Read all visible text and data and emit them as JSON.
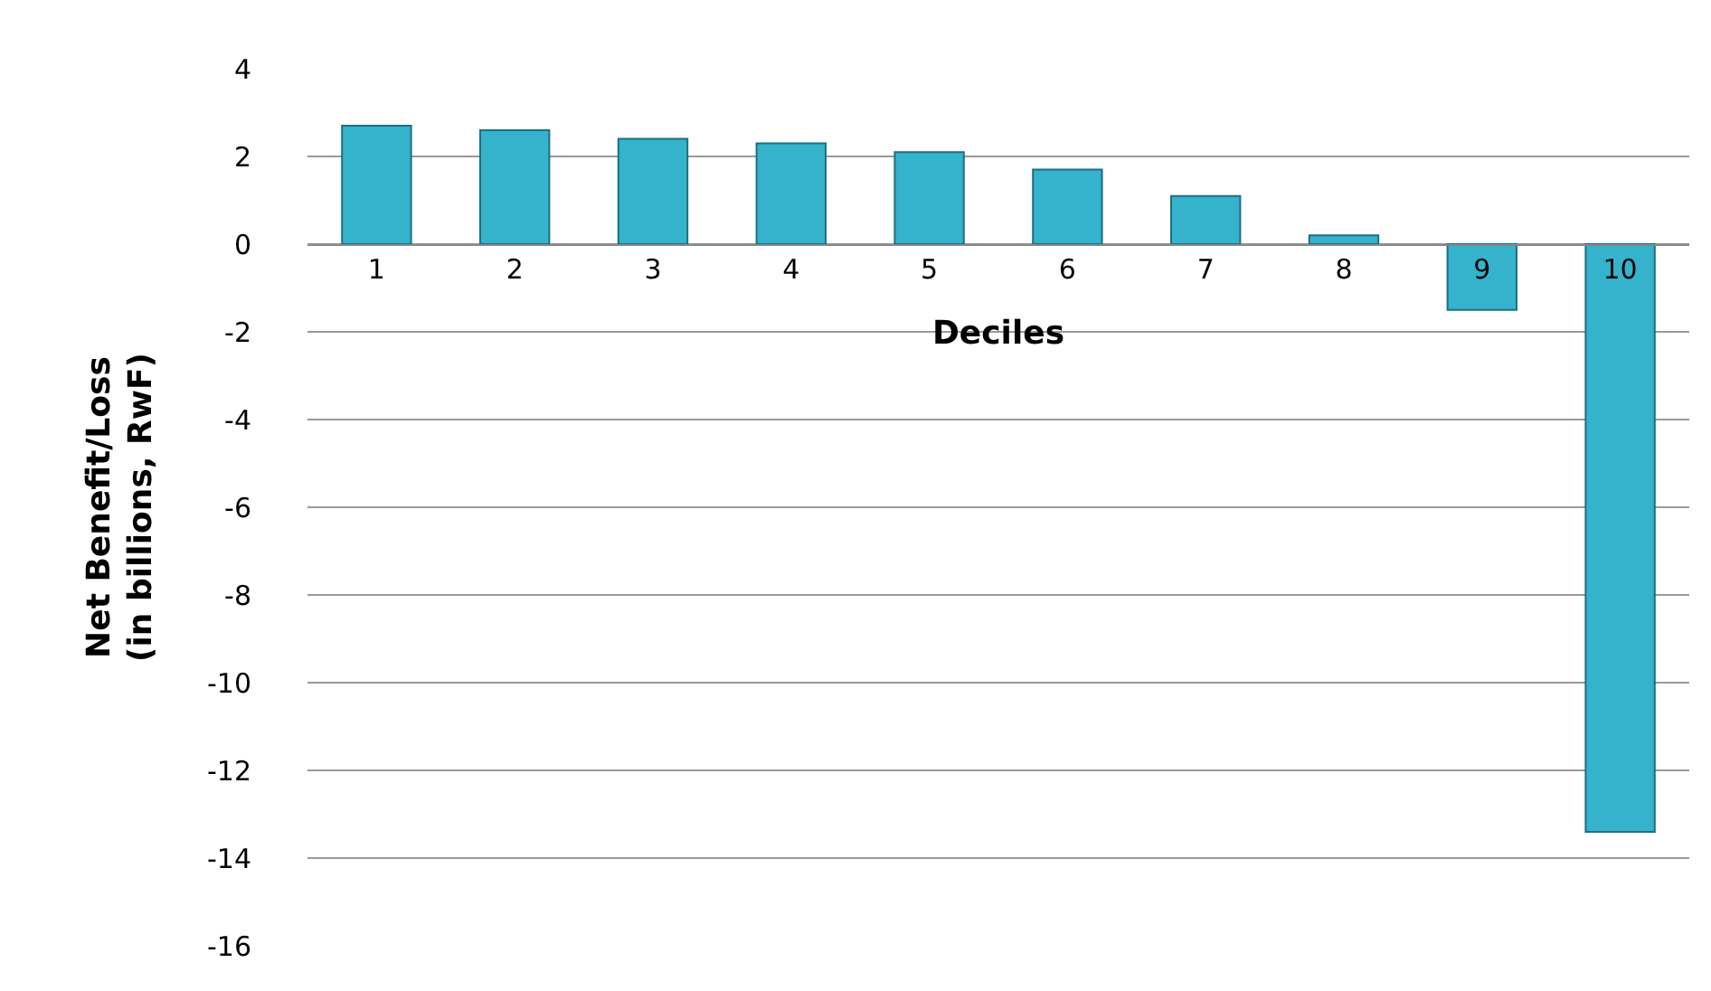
{
  "chart_data": {
    "type": "bar",
    "xlabel": "Deciles",
    "ylabel": "Net Benefit/Loss\n(in billions, RwF)",
    "categories": [
      "1",
      "2",
      "3",
      "4",
      "5",
      "6",
      "7",
      "8",
      "9",
      "10"
    ],
    "values": [
      2.7,
      2.6,
      2.4,
      2.3,
      2.1,
      1.7,
      1.1,
      0.2,
      -1.5,
      -13.4
    ],
    "color": "#35b2cc",
    "ylim": [
      -16,
      4
    ],
    "yticks": [
      -16,
      -14,
      -12,
      -10,
      -8,
      -6,
      -4,
      -2,
      0,
      2,
      4
    ],
    "grid": "y",
    "legend": false
  }
}
